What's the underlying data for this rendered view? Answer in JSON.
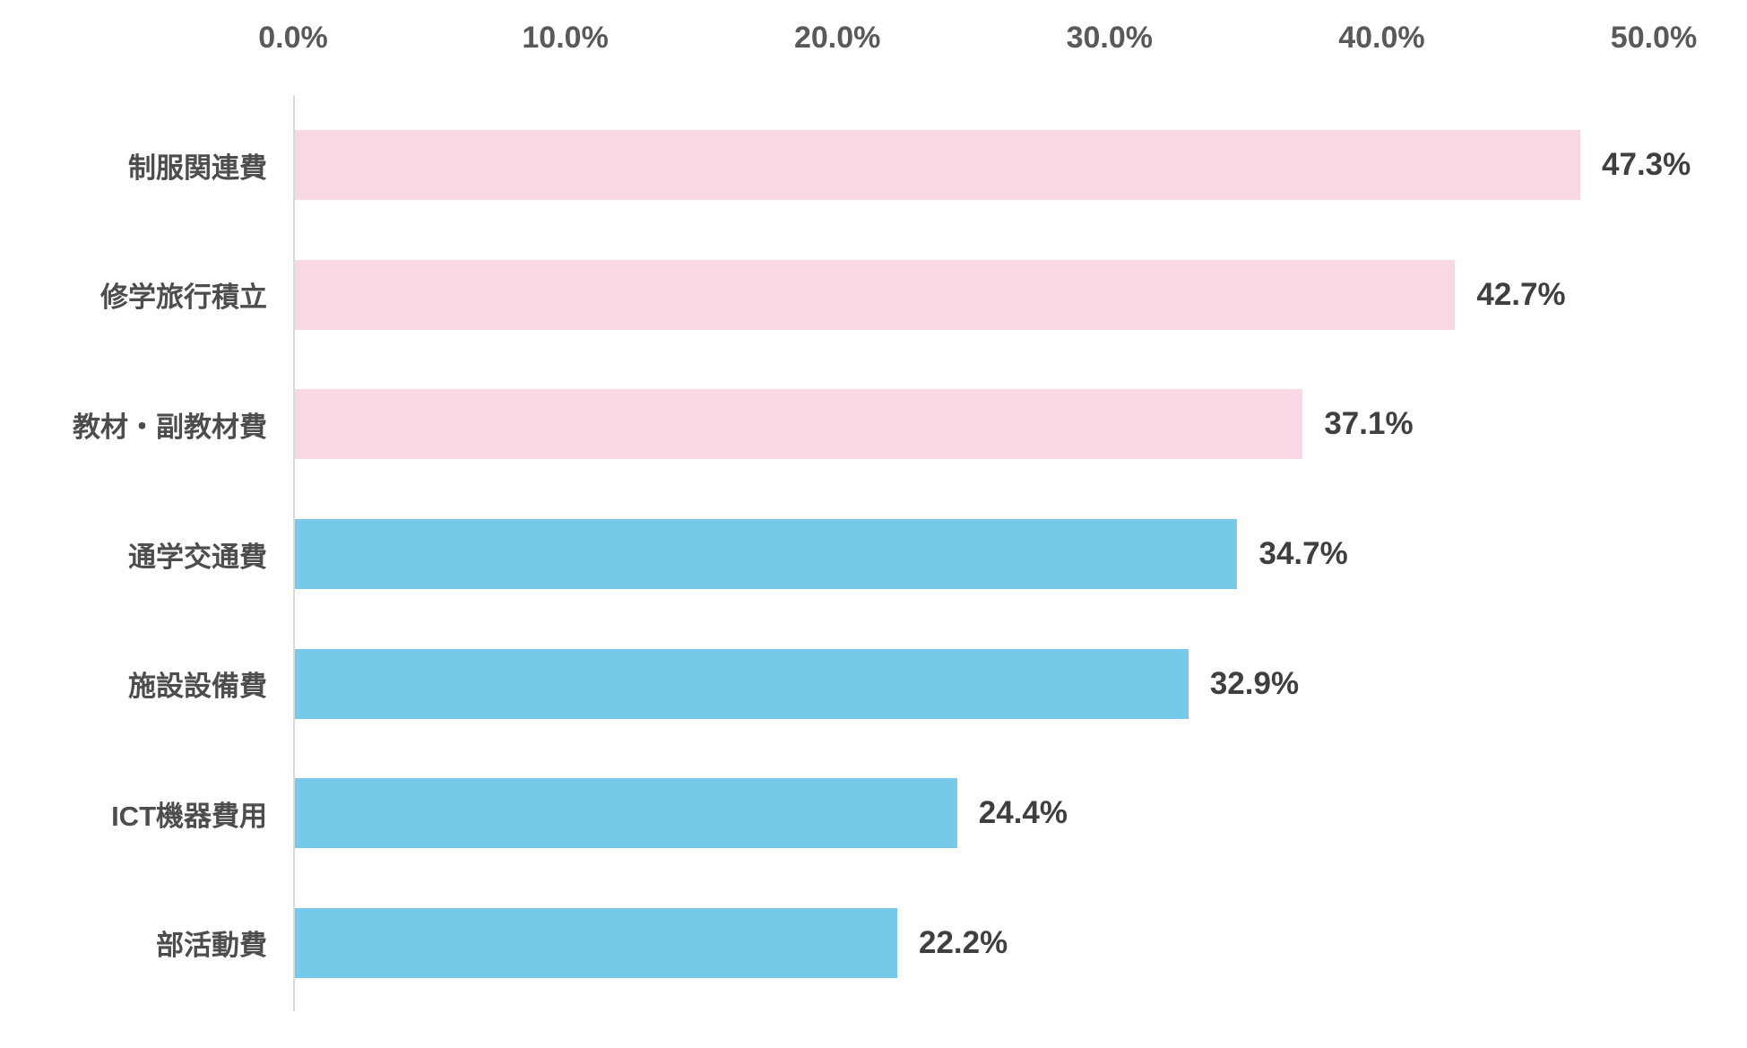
{
  "chart_data": {
    "type": "bar",
    "orientation": "horizontal",
    "title": "",
    "categories": [
      "制服関連費",
      "修学旅行積立",
      "教材・副教材費",
      "通学交通費",
      "施設設備費",
      "ICT機器費用",
      "部活動費"
    ],
    "values": [
      47.3,
      42.7,
      37.1,
      34.7,
      32.9,
      24.4,
      22.2
    ],
    "value_labels": [
      "47.3%",
      "42.7%",
      "37.1%",
      "34.7%",
      "32.9%",
      "24.4%",
      "22.2%"
    ],
    "bar_colors": [
      "#F8D8E4",
      "#F8D8E4",
      "#F8D8E4",
      "#76C9E8",
      "#76C9E8",
      "#76C9E8",
      "#76C9E8"
    ],
    "x_axis": {
      "position": "top",
      "ticks": [
        "0.0%",
        "10.0%",
        "20.0%",
        "30.0%",
        "40.0%",
        "50.0%"
      ],
      "tick_values": [
        0,
        10,
        20,
        30,
        40,
        50
      ],
      "min": 0,
      "max": 50
    },
    "legend": "none",
    "grid": "off",
    "colors": {
      "pink_bar": "#F8D8E4",
      "blue_bar": "#76C9E8",
      "axis_tick_text": "#595959",
      "category_text": "#4D4D4D",
      "value_text": "#3F3F3F",
      "axis_line": "#D9D9D9",
      "background": "#FFFFFF"
    }
  }
}
